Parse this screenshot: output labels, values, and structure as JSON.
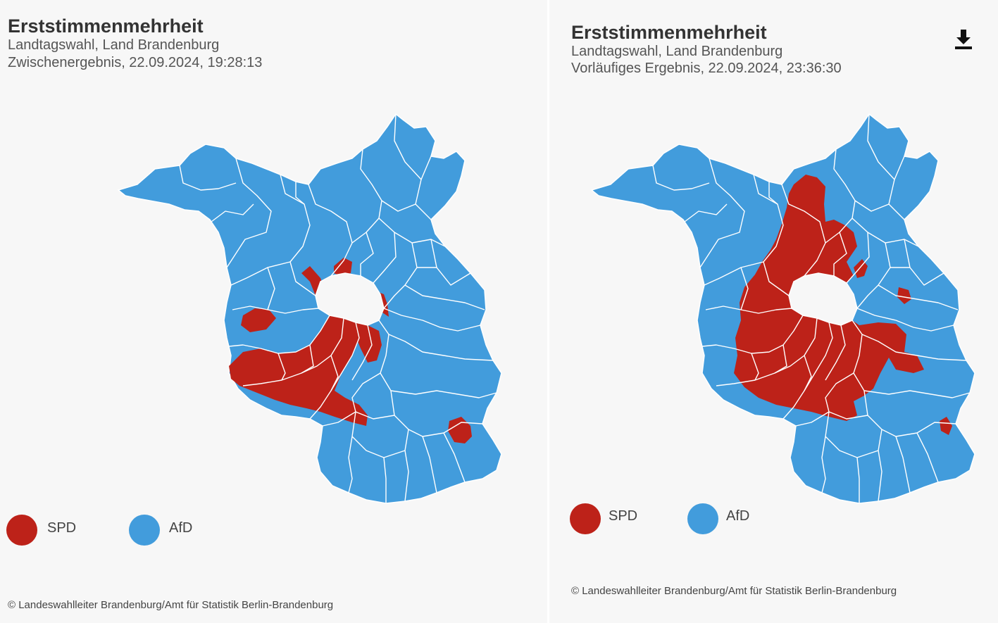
{
  "colors": {
    "SPD": "#bd2219",
    "AfD": "#429cdc",
    "border": "#ffffff",
    "background": "#f7f7f7"
  },
  "panels": [
    {
      "title": "Erststimmenmehrheit",
      "subtitle1": "Landtagswahl, Land Brandenburg",
      "subtitle2": "Zwischenergebnis, 22.09.2024, 19:28:13",
      "legend": [
        {
          "party": "SPD",
          "label": "SPD"
        },
        {
          "party": "AfD",
          "label": "AfD"
        }
      ],
      "source": "© Landeswahlleiter Brandenburg/Amt für Statistik Berlin-Brandenburg"
    },
    {
      "title": "Erststimmenmehrheit",
      "subtitle1": "Landtagswahl, Land Brandenburg",
      "subtitle2": "Vorläufiges Ergebnis, 22.09.2024, 23:36:30",
      "legend": [
        {
          "party": "SPD",
          "label": "SPD"
        },
        {
          "party": "AfD",
          "label": "AfD"
        }
      ],
      "source": "© Landeswahlleiter Brandenburg/Amt für Statistik Berlin-Brandenburg",
      "download_icon": "download-icon"
    }
  ]
}
